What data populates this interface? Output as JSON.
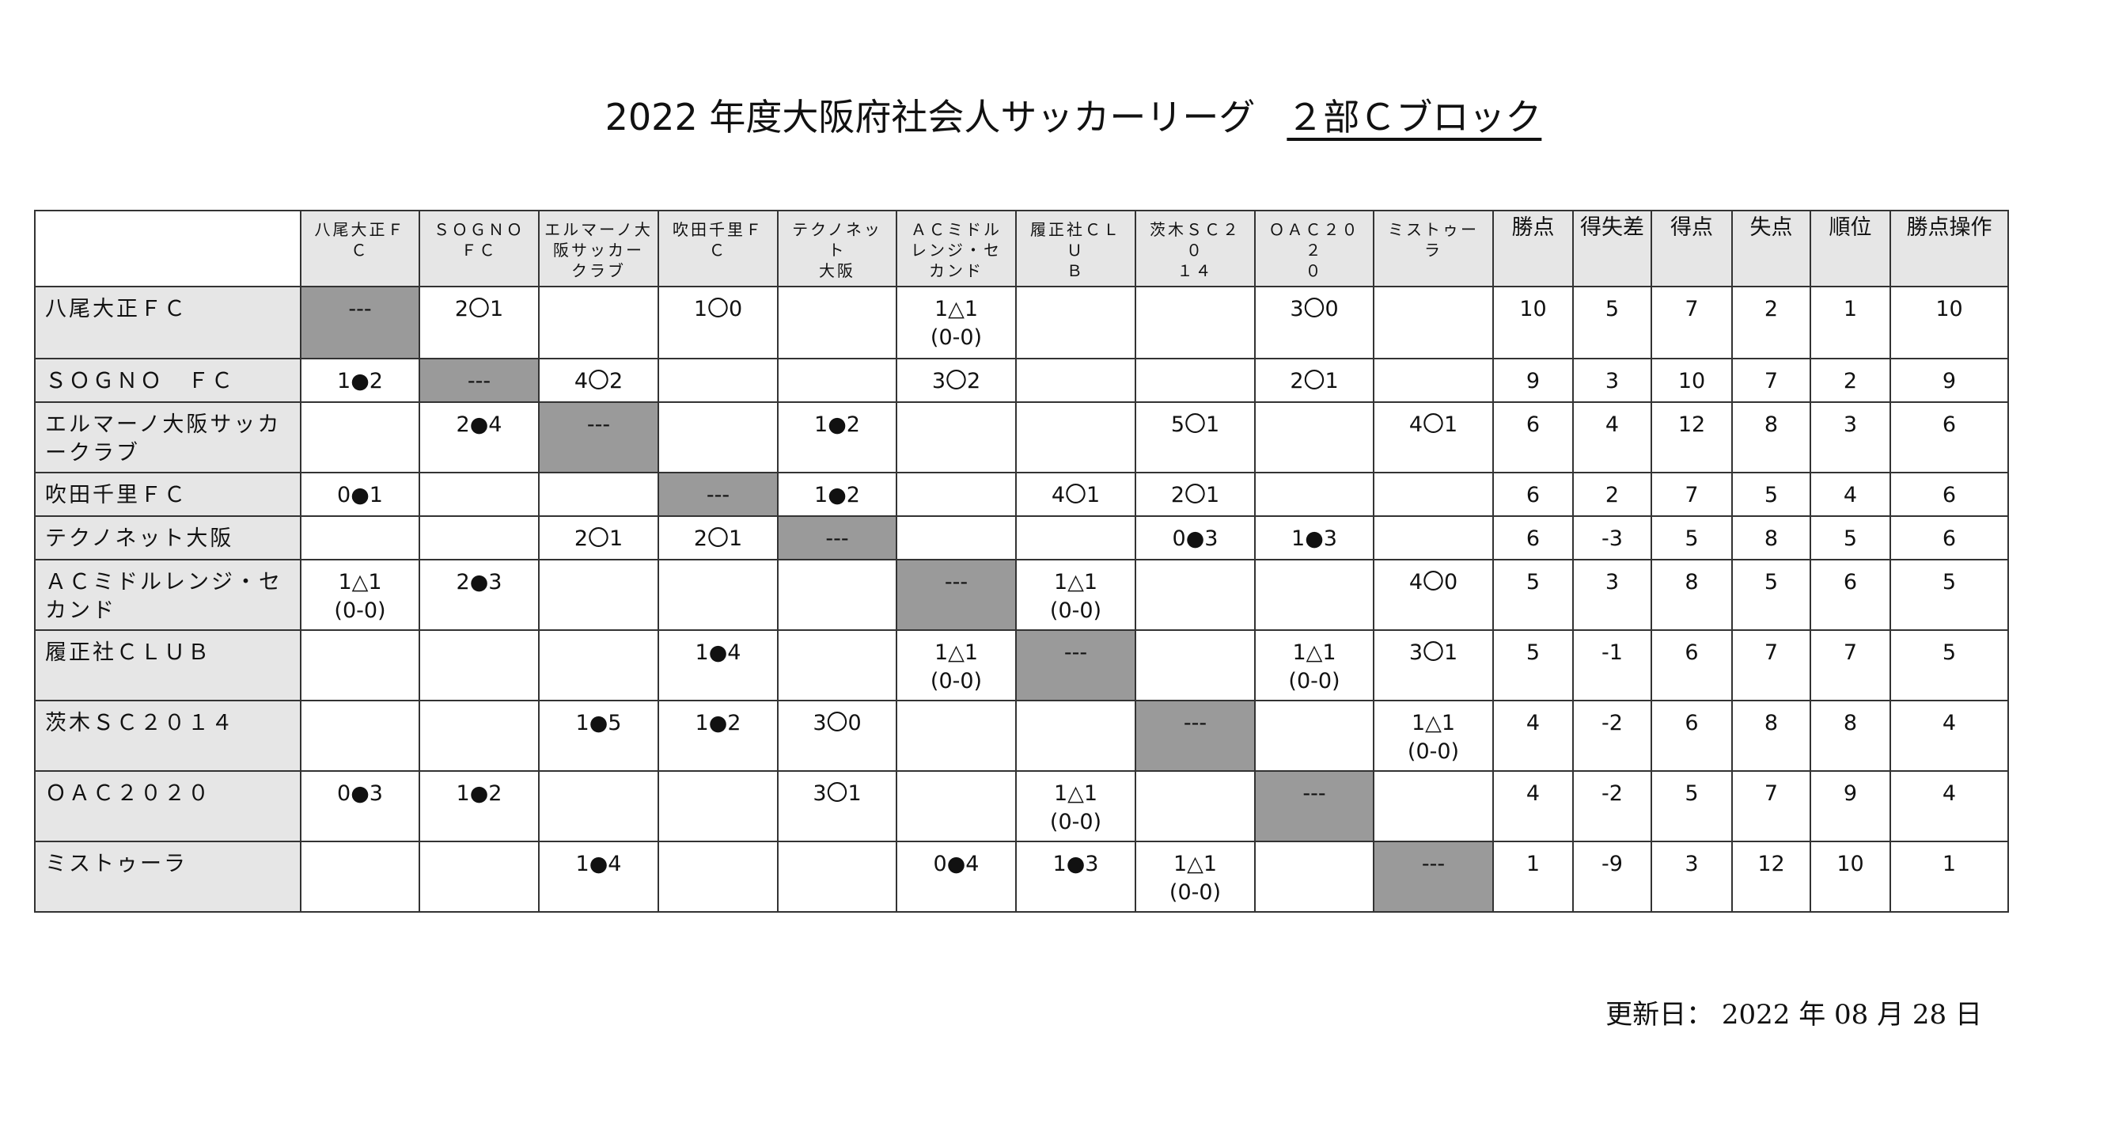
{
  "title": {
    "main": "2022 年度大阪府社会人サッカーリーグ",
    "block": "２部Ｃブロック"
  },
  "table": {
    "team_headers": [
      "八尾大正ＦＣ",
      "ＳＯＧＮＯ\nＦＣ",
      "エルマーノ大阪サッカークラブ",
      "吹田千里ＦＣ",
      "テクノネット\n大阪",
      "ＡＣミドルレンジ・セカンド",
      "履正社ＣＬＵ\nＢ",
      "茨木ＳＣ２０\n１４",
      "ＯＡＣ２０２\n０",
      "ミストゥーラ"
    ],
    "stat_headers": [
      "勝点",
      "得失差",
      "得点",
      "失点",
      "順位",
      "勝点操作"
    ],
    "rows": [
      {
        "team": "八尾大正ＦＣ",
        "results": [
          "---",
          "2〇1",
          "",
          "1〇0",
          "",
          "1△1\n(0-0)",
          "",
          "",
          "3〇0",
          ""
        ],
        "stats": [
          "10",
          "5",
          "7",
          "2",
          "1",
          "10"
        ]
      },
      {
        "team": "ＳＯＧＮＯ　ＦＣ",
        "results": [
          "1●2",
          "---",
          "4〇2",
          "",
          "",
          "3〇2",
          "",
          "",
          "2〇1",
          ""
        ],
        "stats": [
          "9",
          "3",
          "10",
          "7",
          "2",
          "9"
        ]
      },
      {
        "team": "エルマーノ大阪サッカークラブ",
        "results": [
          "",
          "2●4",
          "---",
          "",
          "1●2",
          "",
          "",
          "5〇1",
          "",
          "4〇1"
        ],
        "stats": [
          "6",
          "4",
          "12",
          "8",
          "3",
          "6"
        ]
      },
      {
        "team": "吹田千里ＦＣ",
        "results": [
          "0●1",
          "",
          "",
          "---",
          "1●2",
          "",
          "4〇1",
          "2〇1",
          "",
          ""
        ],
        "stats": [
          "6",
          "2",
          "7",
          "5",
          "4",
          "6"
        ]
      },
      {
        "team": "テクノネット大阪",
        "results": [
          "",
          "",
          "2〇1",
          "2〇1",
          "---",
          "",
          "",
          "0●3",
          "1●3",
          ""
        ],
        "stats": [
          "6",
          "-3",
          "5",
          "8",
          "5",
          "6"
        ]
      },
      {
        "team": "ＡＣミドルレンジ・セカンド",
        "results": [
          "1△1\n(0-0)",
          "2●3",
          "",
          "",
          "",
          "---",
          "1△1\n(0-0)",
          "",
          "",
          "4〇0"
        ],
        "stats": [
          "5",
          "3",
          "8",
          "5",
          "6",
          "5"
        ]
      },
      {
        "team": "履正社ＣＬＵＢ",
        "results": [
          "",
          "",
          "",
          "1●4",
          "",
          "1△1\n(0-0)",
          "---",
          "",
          "1△1\n(0-0)",
          "3〇1"
        ],
        "stats": [
          "5",
          "-1",
          "6",
          "7",
          "7",
          "5"
        ]
      },
      {
        "team": "茨木ＳＣ２０１４",
        "results": [
          "",
          "",
          "1●5",
          "1●2",
          "3〇0",
          "",
          "",
          "---",
          "",
          "1△1\n(0-0)"
        ],
        "stats": [
          "4",
          "-2",
          "6",
          "8",
          "8",
          "4"
        ]
      },
      {
        "team": "ＯＡＣ２０２０",
        "results": [
          "0●3",
          "1●2",
          "",
          "",
          "3〇1",
          "",
          "1△1\n(0-0)",
          "",
          "---",
          ""
        ],
        "stats": [
          "4",
          "-2",
          "5",
          "7",
          "9",
          "4"
        ]
      },
      {
        "team": "ミストゥーラ",
        "results": [
          "",
          "",
          "1●4",
          "",
          "",
          "0●4",
          "1●3",
          "1△1\n(0-0)",
          "",
          "---"
        ],
        "stats": [
          "1",
          "-9",
          "3",
          "12",
          "10",
          "1"
        ]
      }
    ]
  },
  "updated": "更新日： 2022 年 08 月 28 日"
}
